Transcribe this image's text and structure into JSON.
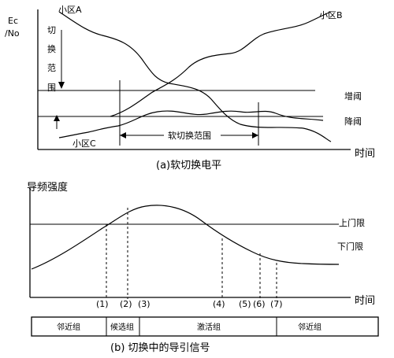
{
  "diagram_a": {
    "y_axis_label": [
      "Ec",
      "/No"
    ],
    "vertical_bracket_label": [
      "切",
      "换",
      "范",
      "围"
    ],
    "x_axis_label": "时间",
    "line_upper_label": "增阈",
    "line_lower_label": "降阈",
    "cell_a_label": "小区A",
    "cell_b_label": "小区B",
    "cell_c_label": "小区C",
    "range_label": "软切换范围",
    "caption": "(a)软切换电平"
  },
  "diagram_b": {
    "y_axis_label": "导频强度",
    "upper_threshold_label": "上门限",
    "lower_threshold_label": "下门限",
    "x_axis_label": "时间",
    "markers": [
      "(1)",
      "(2)",
      "(3)",
      "(4)",
      "(5)",
      "(6)",
      "(7)"
    ],
    "sets": [
      "邻近组",
      "候选组",
      "激活组",
      "邻近组"
    ],
    "caption": "(b)  切换中的导引信号"
  }
}
